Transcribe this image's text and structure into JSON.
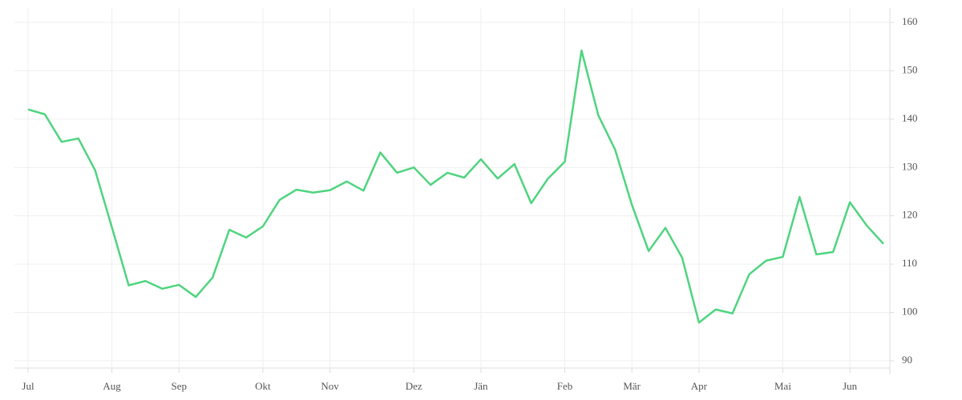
{
  "chart_data": {
    "type": "line",
    "categories": [
      "Jul",
      null,
      null,
      null,
      null,
      "Aug",
      null,
      null,
      null,
      "Sep",
      null,
      null,
      null,
      null,
      "Okt",
      null,
      null,
      null,
      "Nov",
      null,
      null,
      null,
      null,
      "Dez",
      null,
      null,
      null,
      "Jän",
      null,
      null,
      null,
      null,
      "Feb",
      null,
      null,
      null,
      "Mär",
      null,
      null,
      null,
      "Apr",
      null,
      null,
      null,
      null,
      "Mai",
      null,
      null,
      null,
      "Jun",
      null,
      null
    ],
    "values": [
      142.0,
      141.0,
      135.3,
      136.0,
      129.4,
      117.6,
      105.6,
      106.5,
      104.9,
      105.7,
      103.2,
      107.2,
      117.1,
      115.5,
      117.8,
      123.3,
      125.4,
      124.8,
      125.3,
      127.1,
      125.2,
      133.1,
      128.9,
      130.0,
      126.4,
      128.9,
      127.9,
      131.7,
      127.7,
      130.7,
      122.6,
      127.7,
      131.2,
      154.2,
      140.8,
      133.7,
      122.3,
      112.7,
      117.5,
      111.3,
      97.9,
      100.6,
      99.8,
      107.9,
      110.7,
      111.5,
      123.9,
      112.0,
      112.5,
      122.8,
      118.0,
      114.2
    ],
    "color": "#4fd47f",
    "ylim": [
      88,
      163
    ],
    "yticks": [
      90,
      100,
      110,
      120,
      130,
      140,
      150,
      160
    ],
    "grid": true
  }
}
